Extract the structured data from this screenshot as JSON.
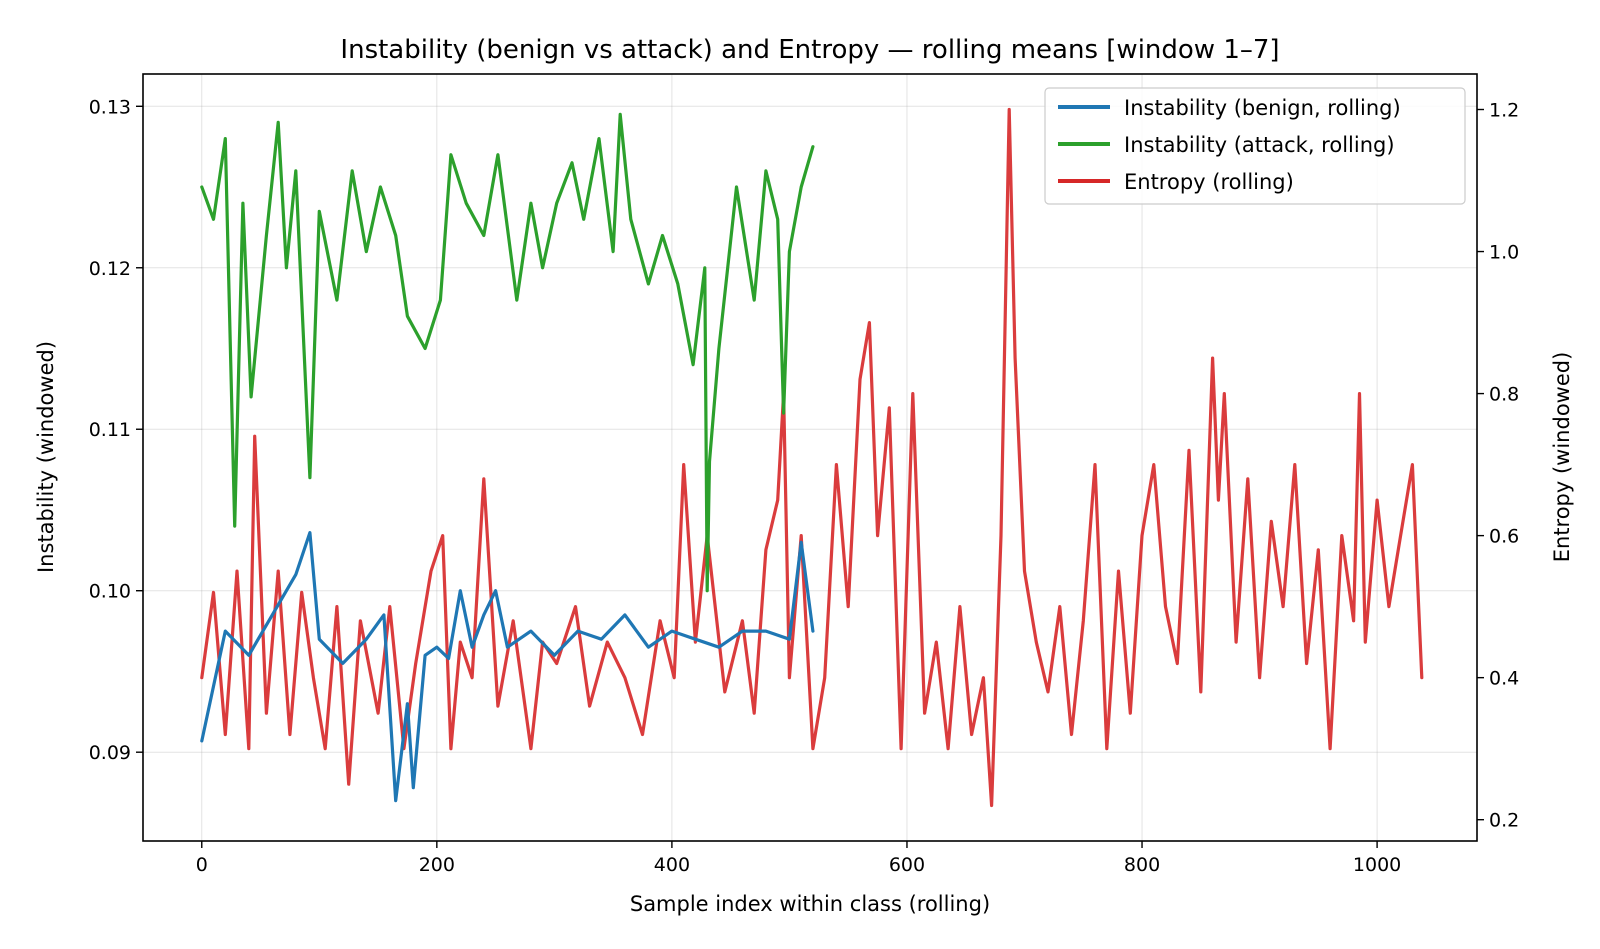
{
  "chart_data": {
    "type": "line",
    "title": "Instability (benign vs attack) and Entropy — rolling means  [window 1–7]",
    "xlabel": "Sample index within class (rolling)",
    "ylabel_left": "Instability (windowed)",
    "ylabel_right": "Entropy (windowed)",
    "xlim": [
      -50,
      1085
    ],
    "ylim_left": [
      0.0845,
      0.132
    ],
    "ylim_right": [
      0.17,
      1.25
    ],
    "x_ticks": [
      0,
      200,
      400,
      600,
      800,
      1000
    ],
    "y_ticks_left": [
      0.09,
      0.1,
      0.11,
      0.12,
      0.13
    ],
    "y_ticks_right": [
      0.2,
      0.4,
      0.6,
      0.8,
      1.0,
      1.2
    ],
    "y_ticks_left_labels": [
      "0.09",
      "0.10",
      "0.11",
      "0.12",
      "0.13"
    ],
    "y_ticks_right_labels": [
      "0.2",
      "0.4",
      "0.6",
      "0.8",
      "1.0",
      "1.2"
    ],
    "grid": true,
    "legend_position": "top-right",
    "series": [
      {
        "name": "Instability (benign, rolling)",
        "axis": "left",
        "color": "#1f77b4",
        "x": [
          0,
          20,
          40,
          60,
          80,
          92,
          100,
          120,
          140,
          155,
          165,
          175,
          180,
          190,
          200,
          210,
          220,
          230,
          240,
          250,
          260,
          280,
          300,
          320,
          340,
          360,
          380,
          400,
          420,
          440,
          460,
          480,
          500,
          510,
          520
        ],
        "y": [
          0.0907,
          0.0975,
          0.096,
          0.0985,
          0.101,
          0.1036,
          0.097,
          0.0955,
          0.097,
          0.0985,
          0.087,
          0.093,
          0.0878,
          0.096,
          0.0965,
          0.0958,
          0.1,
          0.0965,
          0.0985,
          0.1,
          0.0965,
          0.0975,
          0.096,
          0.0975,
          0.097,
          0.0985,
          0.0965,
          0.0975,
          0.097,
          0.0965,
          0.0975,
          0.0975,
          0.097,
          0.103,
          0.0975
        ]
      },
      {
        "name": "Instability (attack, rolling)",
        "axis": "left",
        "color": "#2ca02c",
        "x": [
          0,
          10,
          20,
          28,
          35,
          42,
          55,
          65,
          72,
          80,
          92,
          100,
          115,
          128,
          140,
          152,
          165,
          175,
          190,
          203,
          212,
          225,
          240,
          252,
          268,
          280,
          290,
          302,
          315,
          325,
          338,
          350,
          356,
          365,
          380,
          392,
          405,
          418,
          428,
          430,
          432,
          440,
          455,
          470,
          480,
          490,
          495,
          500,
          510,
          520
        ],
        "y": [
          0.125,
          0.123,
          0.128,
          0.104,
          0.124,
          0.112,
          0.122,
          0.129,
          0.12,
          0.126,
          0.107,
          0.1235,
          0.118,
          0.126,
          0.121,
          0.125,
          0.122,
          0.117,
          0.115,
          0.118,
          0.127,
          0.124,
          0.122,
          0.127,
          0.118,
          0.124,
          0.12,
          0.124,
          0.1265,
          0.123,
          0.128,
          0.121,
          0.1295,
          0.123,
          0.119,
          0.122,
          0.119,
          0.114,
          0.12,
          0.1,
          0.108,
          0.115,
          0.125,
          0.118,
          0.126,
          0.123,
          0.111,
          0.121,
          0.125,
          0.1275
        ]
      },
      {
        "name": "Entropy (rolling)",
        "axis": "right",
        "color": "#d62728",
        "x": [
          0,
          10,
          20,
          30,
          40,
          45,
          55,
          65,
          75,
          85,
          95,
          105,
          115,
          125,
          135,
          150,
          160,
          172,
          182,
          195,
          205,
          212,
          220,
          230,
          240,
          252,
          265,
          280,
          290,
          302,
          318,
          330,
          345,
          360,
          375,
          390,
          402,
          410,
          420,
          430,
          445,
          460,
          470,
          480,
          490,
          495,
          500,
          510,
          520,
          530,
          540,
          550,
          560,
          568,
          575,
          585,
          595,
          605,
          615,
          625,
          635,
          645,
          655,
          665,
          672,
          680,
          687,
          692,
          700,
          710,
          720,
          730,
          740,
          750,
          760,
          770,
          780,
          790,
          800,
          810,
          820,
          830,
          840,
          850,
          860,
          865,
          870,
          880,
          890,
          900,
          910,
          920,
          930,
          940,
          950,
          960,
          970,
          980,
          985,
          990,
          1000,
          1010,
          1020,
          1030,
          1038
        ],
        "y": [
          0.4,
          0.52,
          0.32,
          0.55,
          0.3,
          0.74,
          0.35,
          0.55,
          0.32,
          0.52,
          0.4,
          0.3,
          0.5,
          0.25,
          0.48,
          0.35,
          0.5,
          0.3,
          0.42,
          0.55,
          0.6,
          0.3,
          0.45,
          0.4,
          0.68,
          0.36,
          0.48,
          0.3,
          0.45,
          0.42,
          0.5,
          0.36,
          0.45,
          0.4,
          0.32,
          0.48,
          0.4,
          0.7,
          0.45,
          0.6,
          0.38,
          0.48,
          0.35,
          0.58,
          0.65,
          0.8,
          0.4,
          0.6,
          0.3,
          0.4,
          0.7,
          0.5,
          0.82,
          0.9,
          0.6,
          0.78,
          0.3,
          0.8,
          0.35,
          0.45,
          0.3,
          0.5,
          0.32,
          0.4,
          0.22,
          0.6,
          1.2,
          0.85,
          0.55,
          0.45,
          0.38,
          0.5,
          0.32,
          0.48,
          0.7,
          0.3,
          0.55,
          0.35,
          0.6,
          0.7,
          0.5,
          0.42,
          0.72,
          0.38,
          0.85,
          0.65,
          0.8,
          0.45,
          0.68,
          0.4,
          0.62,
          0.5,
          0.7,
          0.42,
          0.58,
          0.3,
          0.6,
          0.48,
          0.8,
          0.45,
          0.65,
          0.5,
          0.6,
          0.7,
          0.4
        ]
      }
    ]
  }
}
